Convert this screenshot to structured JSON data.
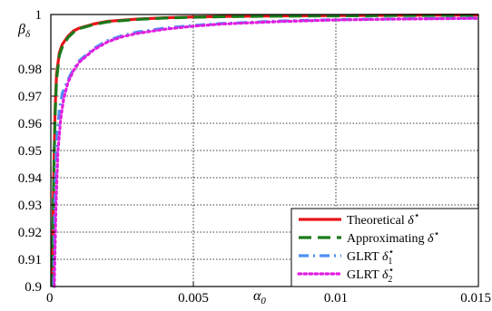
{
  "chart_data": {
    "type": "line",
    "xlabel": {
      "main": "α",
      "sub": "0"
    },
    "ylabel": {
      "main": "β",
      "sub": "δ"
    },
    "xlim": [
      0,
      0.015
    ],
    "ylim": [
      0.9,
      1.0
    ],
    "grid": true,
    "legend_placement": "bottom-right",
    "x_ticks": [
      {
        "value": 0,
        "label": "0"
      },
      {
        "value": 0.005,
        "label": "0.005"
      },
      {
        "value": 0.01,
        "label": "0.01"
      },
      {
        "value": 0.015,
        "label": "0.015"
      }
    ],
    "y_ticks": [
      {
        "value": 0.9,
        "label": "0.9"
      },
      {
        "value": 0.91,
        "label": "0.91"
      },
      {
        "value": 0.92,
        "label": "0.92"
      },
      {
        "value": 0.93,
        "label": "0.93"
      },
      {
        "value": 0.94,
        "label": "0.94"
      },
      {
        "value": 0.95,
        "label": "0.95"
      },
      {
        "value": 0.96,
        "label": "0.96"
      },
      {
        "value": 0.97,
        "label": "0.97"
      },
      {
        "value": 0.98,
        "label": "0.98"
      },
      {
        "value": 1.0,
        "label": "1"
      }
    ],
    "series": [
      {
        "legend": {
          "text": "Theoretical ",
          "sym": "δ",
          "sub": "",
          "sup": "⋆"
        },
        "color": "#e8141b",
        "style": "solid",
        "x": [
          5e-05,
          0.0001,
          0.00015,
          0.0002,
          0.0003,
          0.0004,
          0.0006,
          0.0008,
          0.001,
          0.0015,
          0.002,
          0.003,
          0.004,
          0.005,
          0.006,
          0.008,
          0.01,
          0.012,
          0.015
        ],
        "y": [
          0.9,
          0.94,
          0.965,
          0.978,
          0.986,
          0.989,
          0.992,
          0.994,
          0.995,
          0.9965,
          0.9975,
          0.9983,
          0.9988,
          0.9991,
          0.9993,
          0.9995,
          0.9996,
          0.9997,
          0.9998
        ]
      },
      {
        "legend": {
          "text": "Approximating ",
          "sym": "δ",
          "sub": "",
          "sup": "⋆"
        },
        "color": "#1a7a1a",
        "style": "dashed",
        "x": [
          5e-05,
          0.0001,
          0.00015,
          0.0002,
          0.0003,
          0.0004,
          0.0006,
          0.0008,
          0.001,
          0.0015,
          0.002,
          0.003,
          0.004,
          0.005,
          0.006,
          0.008,
          0.01,
          0.012,
          0.015
        ],
        "y": [
          0.9,
          0.938,
          0.963,
          0.976,
          0.985,
          0.988,
          0.9915,
          0.9935,
          0.9948,
          0.9963,
          0.9973,
          0.9982,
          0.9987,
          0.999,
          0.9992,
          0.9994,
          0.9995,
          0.9996,
          0.9997
        ]
      },
      {
        "legend": {
          "text": "GLRT ",
          "sym": "δ",
          "sub": "1",
          "sup": "⋆"
        },
        "color": "#4f8ff2",
        "style": "dashdot",
        "x": [
          0.0001,
          0.00015,
          0.0002,
          0.0003,
          0.0004,
          0.0006,
          0.0008,
          0.001,
          0.0015,
          0.002,
          0.0025,
          0.003,
          0.004,
          0.005,
          0.006,
          0.008,
          0.01,
          0.012,
          0.015
        ],
        "y": [
          0.9,
          0.935,
          0.953,
          0.965,
          0.971,
          0.976,
          0.98,
          0.983,
          0.9875,
          0.9905,
          0.9922,
          0.9935,
          0.995,
          0.996,
          0.9967,
          0.9976,
          0.9981,
          0.9984,
          0.9987
        ]
      },
      {
        "legend": {
          "text": "GLRT ",
          "sym": "δ",
          "sub": "2",
          "sup": "⋆"
        },
        "color": "#e01ee0",
        "style": "dotted",
        "x": [
          0.00012,
          0.00018,
          0.00025,
          0.00035,
          0.00045,
          0.0006,
          0.0008,
          0.001,
          0.0015,
          0.002,
          0.0025,
          0.003,
          0.004,
          0.005,
          0.006,
          0.008,
          0.01,
          0.012,
          0.015
        ],
        "y": [
          0.9,
          0.93,
          0.95,
          0.962,
          0.969,
          0.975,
          0.9795,
          0.9825,
          0.987,
          0.99,
          0.9918,
          0.993,
          0.9946,
          0.9957,
          0.9965,
          0.9974,
          0.998,
          0.9983,
          0.9986
        ]
      }
    ]
  }
}
